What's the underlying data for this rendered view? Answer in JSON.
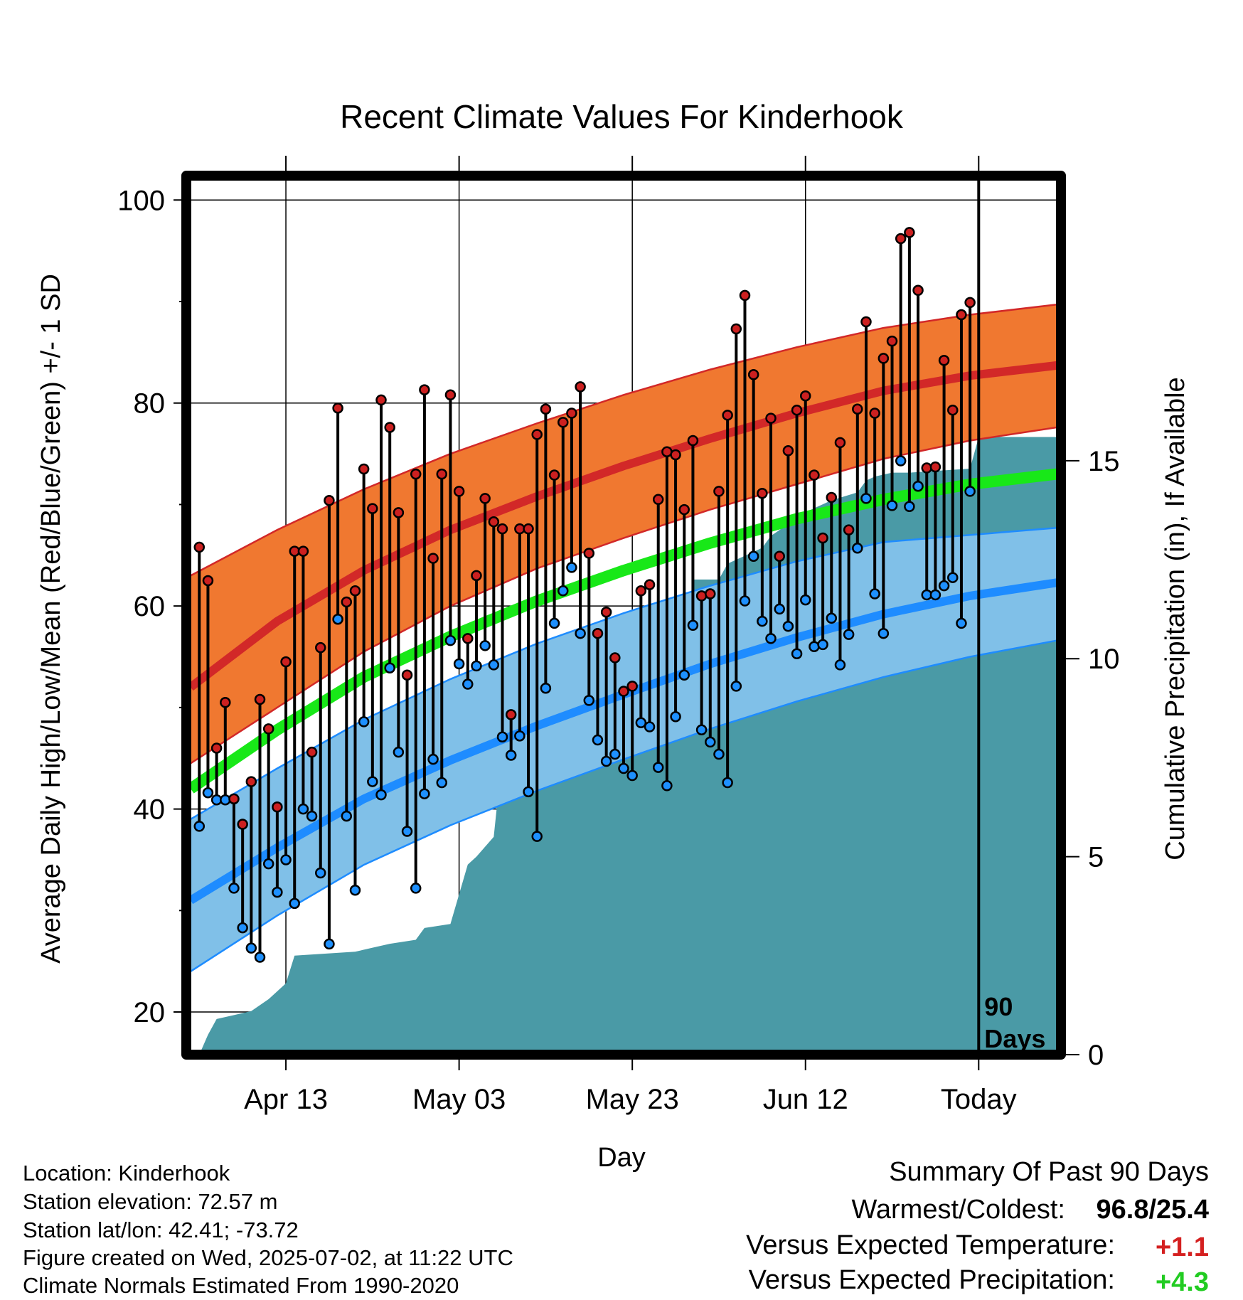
{
  "chart_data": {
    "type": "line",
    "title": "Recent Climate Values For Kinderhook",
    "xlabel": "Day",
    "ylabel": "Average Daily High/Low/Mean (Red/Blue/Green) +/- 1 SD",
    "y2label": "Cumulative Precipitation (in), If Available",
    "ylim": [
      15.8,
      102.4
    ],
    "y2lim": [
      0,
      22.2
    ],
    "y_ticks": [
      "20",
      "40",
      "60",
      "80",
      "100"
    ],
    "y2_ticks": [
      "0",
      "5",
      "10",
      "15"
    ],
    "x_ticks": [
      "Apr 13",
      "May 03",
      "May 23",
      "Jun 12",
      "Today"
    ],
    "x_tick_days": [
      -80,
      -60,
      -40,
      -20,
      0
    ],
    "xlim": [
      -91.5,
      9.5
    ],
    "days_marker": "90\nDays",
    "grid": true,
    "normals": {
      "x": [
        -91,
        -81,
        -71,
        -61,
        -51,
        -41,
        -31,
        -21,
        -11,
        -1,
        9
      ],
      "high_mean": [
        52.0,
        58.5,
        63.5,
        67.5,
        70.8,
        73.8,
        76.5,
        79.0,
        81.2,
        82.7,
        83.7
      ],
      "high_upper": [
        63.0,
        67.5,
        71.5,
        75.0,
        78.0,
        80.8,
        83.3,
        85.5,
        87.4,
        88.7,
        89.7
      ],
      "high_lower": [
        44.5,
        50.0,
        55.5,
        60.0,
        63.7,
        66.7,
        69.5,
        72.0,
        74.5,
        76.3,
        77.6
      ],
      "mean": [
        42.0,
        47.8,
        53.0,
        57.0,
        60.5,
        63.5,
        66.2,
        68.6,
        70.5,
        72.0,
        73.0
      ],
      "low_mean": [
        31.0,
        36.2,
        41.0,
        44.8,
        48.2,
        51.3,
        54.3,
        56.9,
        59.2,
        61.0,
        62.3
      ],
      "low_upper": [
        39.0,
        44.0,
        48.8,
        52.8,
        56.3,
        59.3,
        62.0,
        64.4,
        66.3,
        67.0,
        67.7
      ],
      "low_lower": [
        24.0,
        29.5,
        34.5,
        38.4,
        41.8,
        44.9,
        47.9,
        50.6,
        53.0,
        55.0,
        56.6
      ]
    },
    "series": [
      {
        "name": "High",
        "color": "#cc2020",
        "values": [
          65.8,
          62.5,
          46.0,
          50.5,
          41.0,
          38.5,
          42.7,
          50.8,
          47.9,
          40.2,
          54.5,
          65.4,
          65.4,
          45.6,
          55.9,
          70.4,
          79.5,
          60.4,
          61.5,
          73.5,
          69.6,
          80.3,
          77.6,
          69.2,
          53.2,
          73.0,
          81.3,
          64.7,
          73.0,
          80.8,
          71.3,
          56.8,
          63.0,
          70.6,
          68.3,
          67.6,
          49.3,
          67.6,
          67.6,
          76.9,
          79.4,
          72.9,
          78.1,
          79.0,
          81.6,
          65.2,
          57.3,
          59.4,
          54.9,
          51.6,
          52.1,
          61.5,
          62.1,
          70.5,
          75.2,
          74.9,
          69.5,
          76.3,
          61.0,
          61.2,
          71.3,
          78.8,
          87.3,
          90.6,
          82.8,
          71.1,
          78.5,
          64.9,
          75.3,
          79.3,
          80.7,
          72.9,
          66.7,
          70.7,
          76.1,
          67.5,
          79.4,
          88.0,
          79.0,
          84.4,
          86.1,
          96.2,
          96.8,
          91.1,
          73.6,
          73.7,
          84.2,
          79.3,
          88.7,
          89.9
        ]
      },
      {
        "name": "Low",
        "color": "#1e90ff",
        "values": [
          38.3,
          41.6,
          40.9,
          40.9,
          32.2,
          28.3,
          26.3,
          25.4,
          34.6,
          31.8,
          35.0,
          30.7,
          40.0,
          39.3,
          33.7,
          26.7,
          58.7,
          39.3,
          32.0,
          48.6,
          42.7,
          41.4,
          53.9,
          45.6,
          37.8,
          32.2,
          41.5,
          44.9,
          42.6,
          56.6,
          54.3,
          52.3,
          54.1,
          56.1,
          54.2,
          47.1,
          45.3,
          47.2,
          41.7,
          37.3,
          51.9,
          58.3,
          61.5,
          63.8,
          57.3,
          50.7,
          46.8,
          44.7,
          45.4,
          44.0,
          43.3,
          48.5,
          48.1,
          44.1,
          42.3,
          49.1,
          53.2,
          58.1,
          47.8,
          46.6,
          45.4,
          42.6,
          52.1,
          60.5,
          64.9,
          58.5,
          56.8,
          59.7,
          58.0,
          55.3,
          60.6,
          56.0,
          56.2,
          58.8,
          54.2,
          57.2,
          65.7,
          70.6,
          61.2,
          57.3,
          69.9,
          74.3,
          69.8,
          71.8,
          61.1,
          61.1,
          62.0,
          62.8,
          58.3,
          71.3
        ]
      }
    ],
    "precip": {
      "x": [
        -91,
        -90,
        -89,
        -88,
        -86,
        -84,
        -82,
        -80,
        -79,
        -72,
        -70,
        -68,
        -65,
        -64,
        -61,
        -59,
        -58,
        -56,
        -55,
        -53,
        -52,
        -51,
        -43,
        -42,
        -38,
        -34,
        -33,
        -30,
        -29,
        -25,
        -24,
        -20,
        -18,
        -17,
        -14,
        -13,
        -12,
        -10,
        -8,
        -1,
        0,
        9
      ],
      "values": [
        0.0,
        0.0,
        0.5,
        0.9,
        1.0,
        1.1,
        1.4,
        1.8,
        2.5,
        2.6,
        2.7,
        2.8,
        2.9,
        3.2,
        3.3,
        4.8,
        5.0,
        5.5,
        7.6,
        7.6,
        7.7,
        8.0,
        8.1,
        8.3,
        9.0,
        9.1,
        12.0,
        12.0,
        12.4,
        12.8,
        13.1,
        13.7,
        13.9,
        14.0,
        14.2,
        14.5,
        14.6,
        14.7,
        14.7,
        14.8,
        15.6,
        15.6
      ]
    },
    "colors": {
      "high_band": "#f07830",
      "high_line": "#d22828",
      "low_band": "#80c0e8",
      "low_line": "#1e8cff",
      "mean_line": "#18e818",
      "precip": "#4a9aa6",
      "stem": "#000000"
    }
  },
  "footer": {
    "location": "Location: Kinderhook",
    "elevation": "Station elevation: 72.57 m",
    "latlon": "Station lat/lon: 42.41; -73.72",
    "created": "Figure created on Wed, 2025-07-02, at 11:22 UTC",
    "normals": "Climate Normals Estimated From 1990-2020"
  },
  "summary": {
    "heading": "Summary Of Past 90 Days",
    "warmest_label": "Warmest/Coldest:",
    "warmest_value": "96.8/25.4",
    "temp_label": "Versus Expected Temperature:",
    "temp_value": "+1.1",
    "temp_color": "#d42020",
    "precip_label": "Versus Expected Precipitation:",
    "precip_value": "+4.3",
    "precip_color": "#22cc22"
  }
}
